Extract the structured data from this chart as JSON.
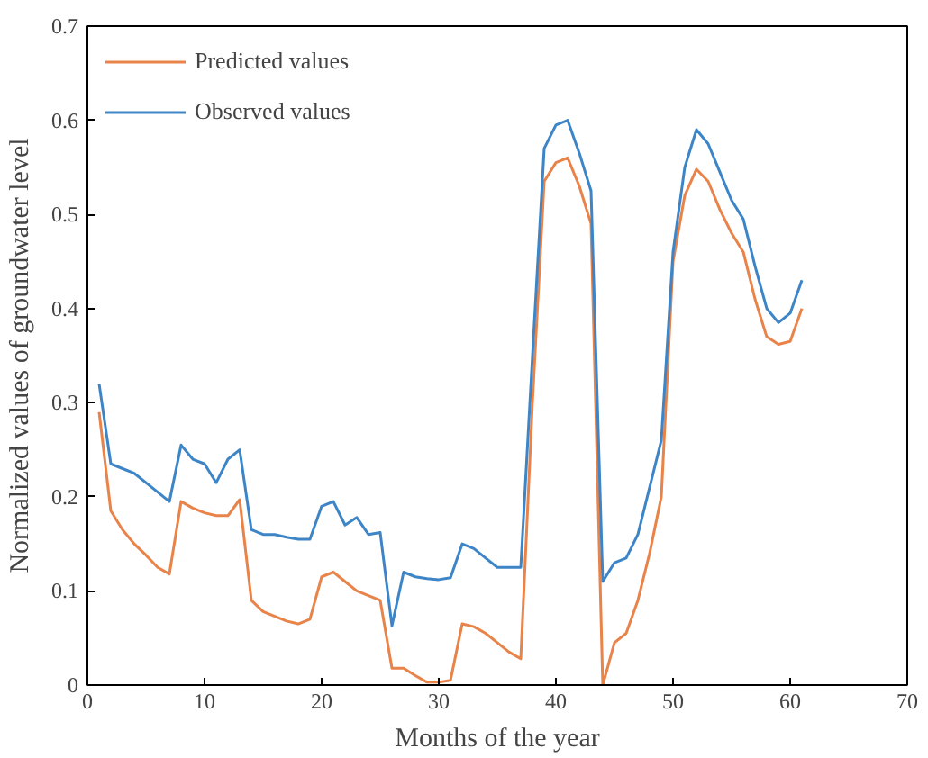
{
  "chart_data": {
    "type": "line",
    "xlabel": "Months of the year",
    "ylabel": "Normalized values of groundwater level",
    "x": [
      1,
      2,
      3,
      4,
      5,
      6,
      7,
      8,
      9,
      10,
      11,
      12,
      13,
      14,
      15,
      16,
      17,
      18,
      19,
      20,
      21,
      22,
      23,
      24,
      25,
      26,
      27,
      28,
      29,
      30,
      31,
      32,
      33,
      34,
      35,
      36,
      37,
      38,
      39,
      40,
      41,
      42,
      43,
      44,
      45,
      46,
      47,
      48,
      49,
      50,
      51,
      52,
      53,
      54,
      55,
      56,
      57,
      58,
      59,
      60,
      61
    ],
    "series": [
      {
        "name": "Predicted values",
        "color": "#e8834a",
        "values": [
          0.29,
          0.185,
          0.165,
          0.15,
          0.138,
          0.125,
          0.118,
          0.195,
          0.188,
          0.183,
          0.18,
          0.18,
          0.197,
          0.09,
          0.078,
          0.073,
          0.068,
          0.065,
          0.07,
          0.115,
          0.12,
          0.11,
          0.1,
          0.095,
          0.09,
          0.018,
          0.018,
          0.01,
          0.003,
          0.003,
          0.005,
          0.065,
          0.062,
          0.055,
          0.045,
          0.035,
          0.028,
          0.3,
          0.535,
          0.555,
          0.56,
          0.53,
          0.49,
          0.0,
          0.045,
          0.055,
          0.09,
          0.14,
          0.2,
          0.45,
          0.52,
          0.548,
          0.535,
          0.505,
          0.48,
          0.46,
          0.41,
          0.37,
          0.362,
          0.365,
          0.4
        ]
      },
      {
        "name": "Observed values",
        "color": "#3d85c6",
        "values": [
          0.32,
          0.235,
          0.23,
          0.225,
          0.215,
          0.205,
          0.195,
          0.255,
          0.24,
          0.235,
          0.215,
          0.24,
          0.25,
          0.165,
          0.16,
          0.16,
          0.157,
          0.155,
          0.155,
          0.19,
          0.195,
          0.17,
          0.178,
          0.16,
          0.162,
          0.063,
          0.12,
          0.115,
          0.113,
          0.112,
          0.114,
          0.15,
          0.145,
          0.135,
          0.125,
          0.125,
          0.125,
          0.35,
          0.57,
          0.595,
          0.6,
          0.565,
          0.525,
          0.11,
          0.13,
          0.135,
          0.16,
          0.21,
          0.26,
          0.46,
          0.55,
          0.59,
          0.575,
          0.545,
          0.515,
          0.495,
          0.445,
          0.4,
          0.385,
          0.395,
          0.43
        ]
      }
    ],
    "xlim": [
      0,
      70
    ],
    "xticks": [
      0,
      10,
      20,
      30,
      40,
      50,
      60,
      70
    ],
    "ylim": [
      0,
      0.7
    ],
    "yticks": [
      0,
      0.1,
      0.2,
      0.3,
      0.4,
      0.5,
      0.6,
      0.7
    ],
    "grid": false,
    "legend": "top left",
    "marker": "none",
    "line_style": "solid"
  }
}
